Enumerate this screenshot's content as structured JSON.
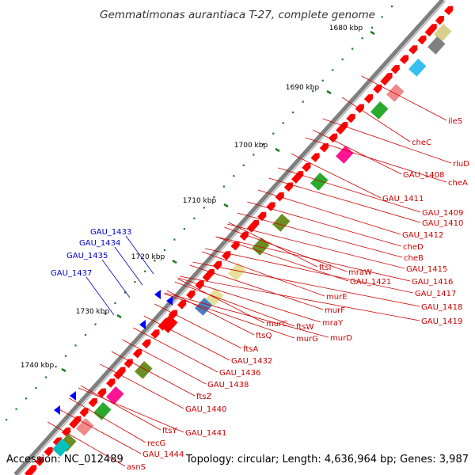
{
  "title": "Gemmatimonas aurantiaca T-27, complete genome",
  "footer": {
    "accession": "Accession: NC_012489",
    "summary": "Topology: circular; Length: 4,636,964 bp; Genes: 3,987"
  },
  "colors": {
    "backbone": "#7f7f7f",
    "cds": "#ff0000",
    "tick": "#1f7a1f",
    "forward_label": "#cc0000",
    "reverse_label": "#0000cc",
    "reverse_cds": "#0000ff"
  },
  "scale_labels": [
    "1680 kbp",
    "1690 kbp",
    "1700 kbp",
    "1710 kbp",
    "1720 kbp",
    "1730 kbp",
    "1740 kbp"
  ],
  "forward_genes": [
    "ileS",
    "rluD",
    "cheA",
    "cheC",
    "GAU_1408",
    "GAU_1411",
    "GAU_1409",
    "GAU_1410",
    "GAU_1412",
    "cheD",
    "cheB",
    "GAU_1415",
    "GAU_1416",
    "GAU_1417",
    "GAU_1418",
    "GAU_1419",
    "ftsI",
    "mraW",
    "GAU_1421",
    "murE",
    "murF",
    "mraY",
    "murD",
    "ftsW",
    "murG",
    "murC",
    "ftsQ",
    "ftsA",
    "GAU_1432",
    "GAU_1436",
    "GAU_1438",
    "ftsZ",
    "GAU_1440",
    "ftsY",
    "GAU_1441",
    "recG",
    "GAU_1444",
    "asnS"
  ],
  "reverse_genes": [
    "GAU_1433",
    "GAU_1434",
    "GAU_1435",
    "GAU_1437"
  ]
}
